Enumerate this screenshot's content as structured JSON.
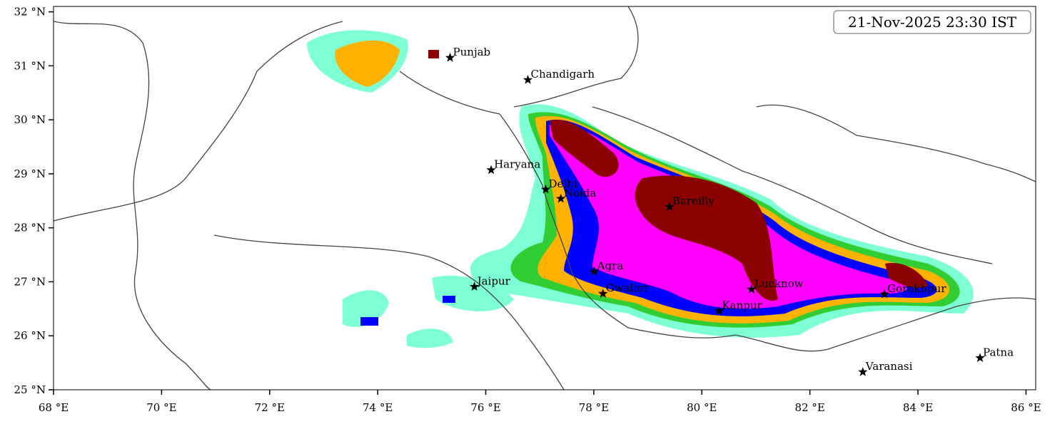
{
  "map": {
    "timestamp": "21-Nov-2025 23:30 IST",
    "xlim": [
      68,
      86.18
    ],
    "ylim": [
      25,
      32.1
    ],
    "xticks": [
      {
        "value": 68,
        "label": "68 °E"
      },
      {
        "value": 70,
        "label": "70 °E"
      },
      {
        "value": 72,
        "label": "72 °E"
      },
      {
        "value": 74,
        "label": "74 °E"
      },
      {
        "value": 76,
        "label": "76 °E"
      },
      {
        "value": 78,
        "label": "78 °E"
      },
      {
        "value": 80,
        "label": "80 °E"
      },
      {
        "value": 82,
        "label": "82 °E"
      },
      {
        "value": 84,
        "label": "84 °E"
      },
      {
        "value": 86,
        "label": "86 °E"
      }
    ],
    "yticks": [
      {
        "value": 25,
        "label": "25 °N"
      },
      {
        "value": 26,
        "label": "26 °N"
      },
      {
        "value": 27,
        "label": "27 °N"
      },
      {
        "value": 28,
        "label": "28 °N"
      },
      {
        "value": 29,
        "label": "29 °N"
      },
      {
        "value": 30,
        "label": "30 °N"
      },
      {
        "value": 31,
        "label": "31 °N"
      },
      {
        "value": 32,
        "label": "32 °N"
      }
    ],
    "cities": [
      {
        "name": "Punjab",
        "lon": 75.34,
        "lat": 31.15
      },
      {
        "name": "Chandigarh",
        "lon": 76.78,
        "lat": 30.74
      },
      {
        "name": "Haryana",
        "lon": 76.1,
        "lat": 29.07
      },
      {
        "name": "Delhi",
        "lon": 77.11,
        "lat": 28.71
      },
      {
        "name": "Noida",
        "lon": 77.39,
        "lat": 28.54
      },
      {
        "name": "Bareilly",
        "lon": 79.4,
        "lat": 28.39
      },
      {
        "name": "Agra",
        "lon": 78.01,
        "lat": 27.19
      },
      {
        "name": "Jaipur",
        "lon": 75.79,
        "lat": 26.91
      },
      {
        "name": "Gwalior",
        "lon": 78.17,
        "lat": 26.78
      },
      {
        "name": "Lucknow",
        "lon": 80.92,
        "lat": 26.86
      },
      {
        "name": "Kanpur",
        "lon": 80.32,
        "lat": 26.46
      },
      {
        "name": "Gorakhpur",
        "lon": 83.38,
        "lat": 26.77
      },
      {
        "name": "Varanasi",
        "lon": 82.98,
        "lat": 25.33
      },
      {
        "name": "Patna",
        "lon": 85.15,
        "lat": 25.59
      }
    ]
  }
}
